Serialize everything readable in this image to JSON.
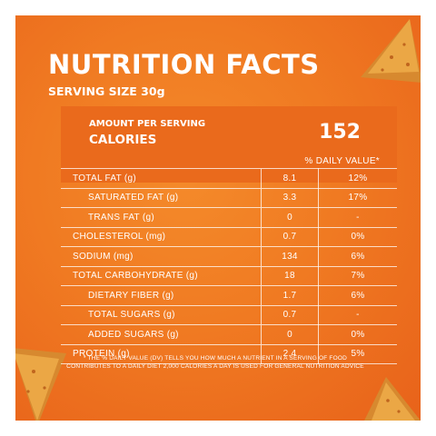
{
  "panel": {
    "background_color": "#f07a22"
  },
  "title": "NUTRITION FACTS",
  "serving_size": "SERVING SIZE 30g",
  "calories_box": {
    "amount_per_serving": "AMOUNT PER SERVING",
    "calories_label": "CALORIES",
    "calories_value": "152",
    "daily_value_header": "% DAILY VALUE*"
  },
  "nutrients": [
    {
      "name": "TOTAL FAT (g)",
      "amount": "8.1",
      "dv": "12%"
    },
    {
      "name": "SATURATED FAT (g)",
      "amount": "3.3",
      "dv": "17%"
    },
    {
      "name": "TRANS FAT (g)",
      "amount": "0",
      "dv": "-"
    },
    {
      "name": "CHOLESTEROL (mg)",
      "amount": "0.7",
      "dv": "0%"
    },
    {
      "name": "SODIUM (mg)",
      "amount": "134",
      "dv": "6%"
    },
    {
      "name": "TOTAL CARBOHYDRATE (g)",
      "amount": "18",
      "dv": "7%"
    },
    {
      "name": "DIETARY FIBER (g)",
      "amount": "1.7",
      "dv": "6%"
    },
    {
      "name": "TOTAL SUGARS (g)",
      "amount": "0.7",
      "dv": "-"
    },
    {
      "name": "ADDED SUGARS (g)",
      "amount": "0",
      "dv": "0%"
    },
    {
      "name": "PROTEIN (g)",
      "amount": "2.4",
      "dv": "5%"
    }
  ],
  "footnote": "* THE % DAILY VALUE (DV) TELLS YOU HOW MUCH A NUTRIENT IN A SERVING OF FOOD CONTRIBUTES TO A DAILY DIET 2,000 CALORIES A DAY IS USED FOR GENERAL NUTRITION ADVICE"
}
